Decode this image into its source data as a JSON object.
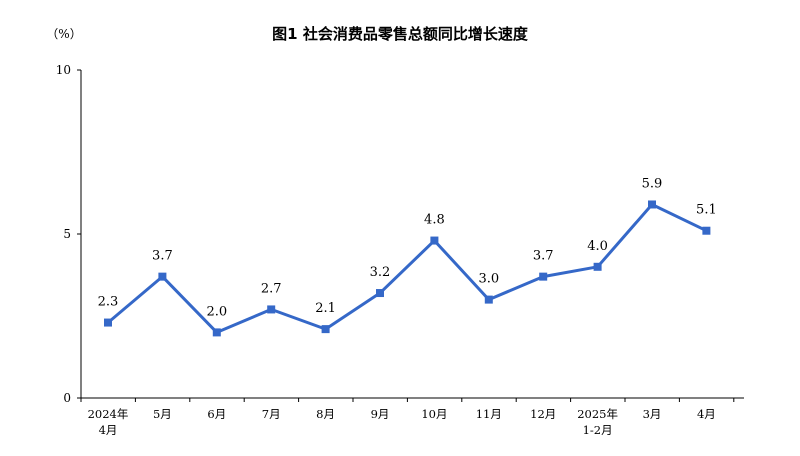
{
  "chart_data": {
    "type": "line",
    "title": "图1 社会消费品零售总额同比增长速度",
    "y_unit_label": "（%）",
    "categories": [
      [
        "2024年",
        "4月"
      ],
      [
        "5月"
      ],
      [
        "6月"
      ],
      [
        "7月"
      ],
      [
        "8月"
      ],
      [
        "9月"
      ],
      [
        "10月"
      ],
      [
        "11月"
      ],
      [
        "12月"
      ],
      [
        "2025年",
        "1-2月"
      ],
      [
        "3月"
      ],
      [
        "4月"
      ]
    ],
    "values": [
      2.3,
      3.7,
      2.0,
      2.7,
      2.1,
      3.2,
      4.8,
      3.0,
      3.7,
      4.0,
      5.9,
      5.1
    ],
    "value_labels": [
      "2.3",
      "3.7",
      "2.0",
      "2.7",
      "2.1",
      "3.2",
      "4.8",
      "3.0",
      "3.7",
      "4.0",
      "5.9",
      "5.1"
    ],
    "ylim": [
      0,
      10
    ],
    "y_ticks": [
      "0",
      "5",
      "10"
    ],
    "grid": false,
    "legend": "none",
    "line_color": "#3568C8"
  }
}
